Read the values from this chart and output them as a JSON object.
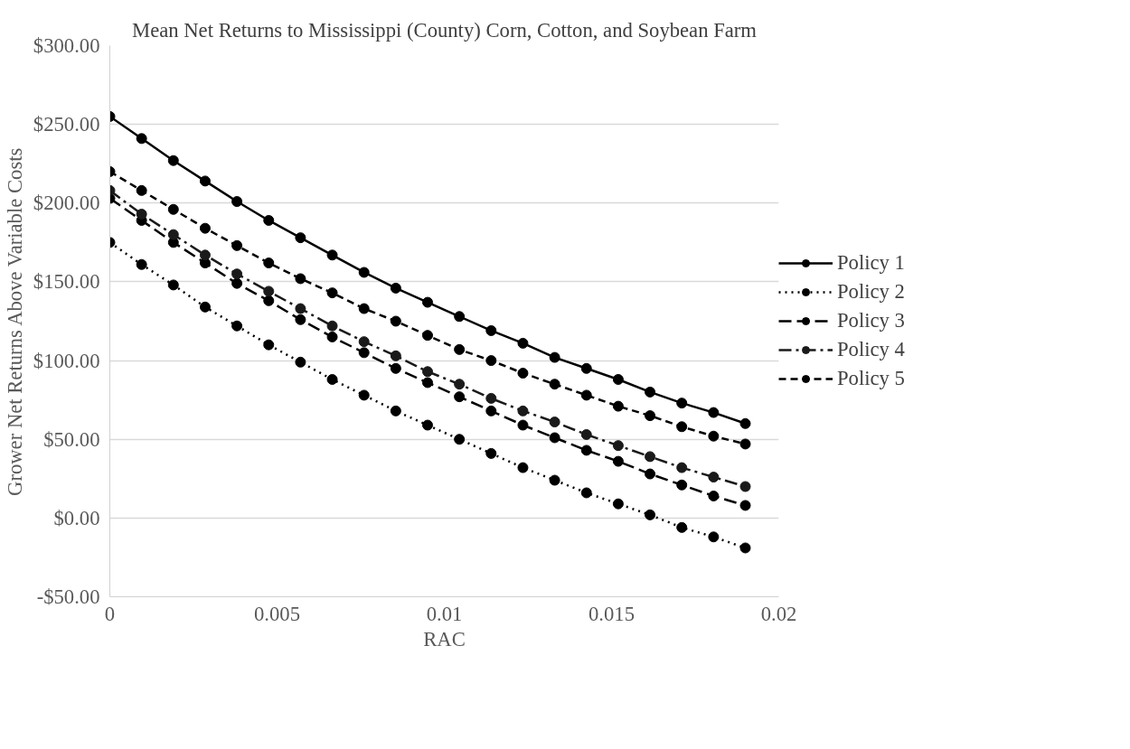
{
  "chart_data": {
    "type": "line",
    "title": "Mean Net Returns to Mississippi (County) Corn, Cotton, and Soybean Farm",
    "xlabel": "RAC",
    "ylabel": "Grower Net Returns Above Variable Costs",
    "x": [
      0,
      0.00095,
      0.0019,
      0.00285,
      0.0038,
      0.00475,
      0.0057,
      0.00665,
      0.0076,
      0.00855,
      0.0095,
      0.01045,
      0.0114,
      0.01235,
      0.0133,
      0.01425,
      0.0152,
      0.01615,
      0.0171,
      0.01805,
      0.019
    ],
    "series": [
      {
        "name": "Policy 1",
        "color": "#000000",
        "line_style": "solid",
        "values": [
          255,
          241,
          227,
          214,
          201,
          189,
          178,
          167,
          156,
          146,
          137,
          128,
          119,
          111,
          102,
          95,
          88,
          80,
          73,
          67,
          60
        ]
      },
      {
        "name": "Policy 2",
        "color": "#000000",
        "line_style": "dotted",
        "values": [
          175,
          161,
          148,
          134,
          122,
          110,
          99,
          88,
          78,
          68,
          59,
          50,
          41,
          32,
          24,
          16,
          9,
          2,
          -6,
          -12,
          -19
        ]
      },
      {
        "name": "Policy 3",
        "color": "#000000",
        "line_style": "longdash",
        "values": [
          203,
          189,
          175,
          162,
          149,
          138,
          126,
          115,
          105,
          95,
          86,
          77,
          68,
          59,
          51,
          43,
          36,
          28,
          21,
          14,
          8
        ]
      },
      {
        "name": "Policy 4",
        "color": "#1a1a1a",
        "line_style": "dashdot",
        "values": [
          208,
          193,
          180,
          167,
          155,
          144,
          133,
          122,
          112,
          103,
          93,
          85,
          76,
          68,
          61,
          53,
          46,
          39,
          32,
          26,
          20
        ]
      },
      {
        "name": "Policy 5",
        "color": "#000000",
        "line_style": "dashed",
        "values": [
          220,
          208,
          196,
          184,
          173,
          162,
          152,
          143,
          133,
          125,
          116,
          107,
          100,
          92,
          85,
          78,
          71,
          65,
          58,
          52,
          47
        ]
      }
    ],
    "marker": "circle",
    "grid": "y",
    "legend": "right",
    "xlim": [
      0,
      0.02
    ],
    "xticks": [
      0,
      0.005,
      0.01,
      0.015,
      0.02
    ],
    "ylim": [
      -50,
      300
    ],
    "yticks": [
      {
        "value": -50,
        "label": "-$50.00"
      },
      {
        "value": 0,
        "label": "$0.00"
      },
      {
        "value": 50,
        "label": "$50.00"
      },
      {
        "value": 100,
        "label": "$100.00"
      },
      {
        "value": 150,
        "label": "$150.00"
      },
      {
        "value": 200,
        "label": "$200.00"
      },
      {
        "value": 250,
        "label": "$250.00"
      },
      {
        "value": 300,
        "label": "$300.00"
      }
    ]
  }
}
